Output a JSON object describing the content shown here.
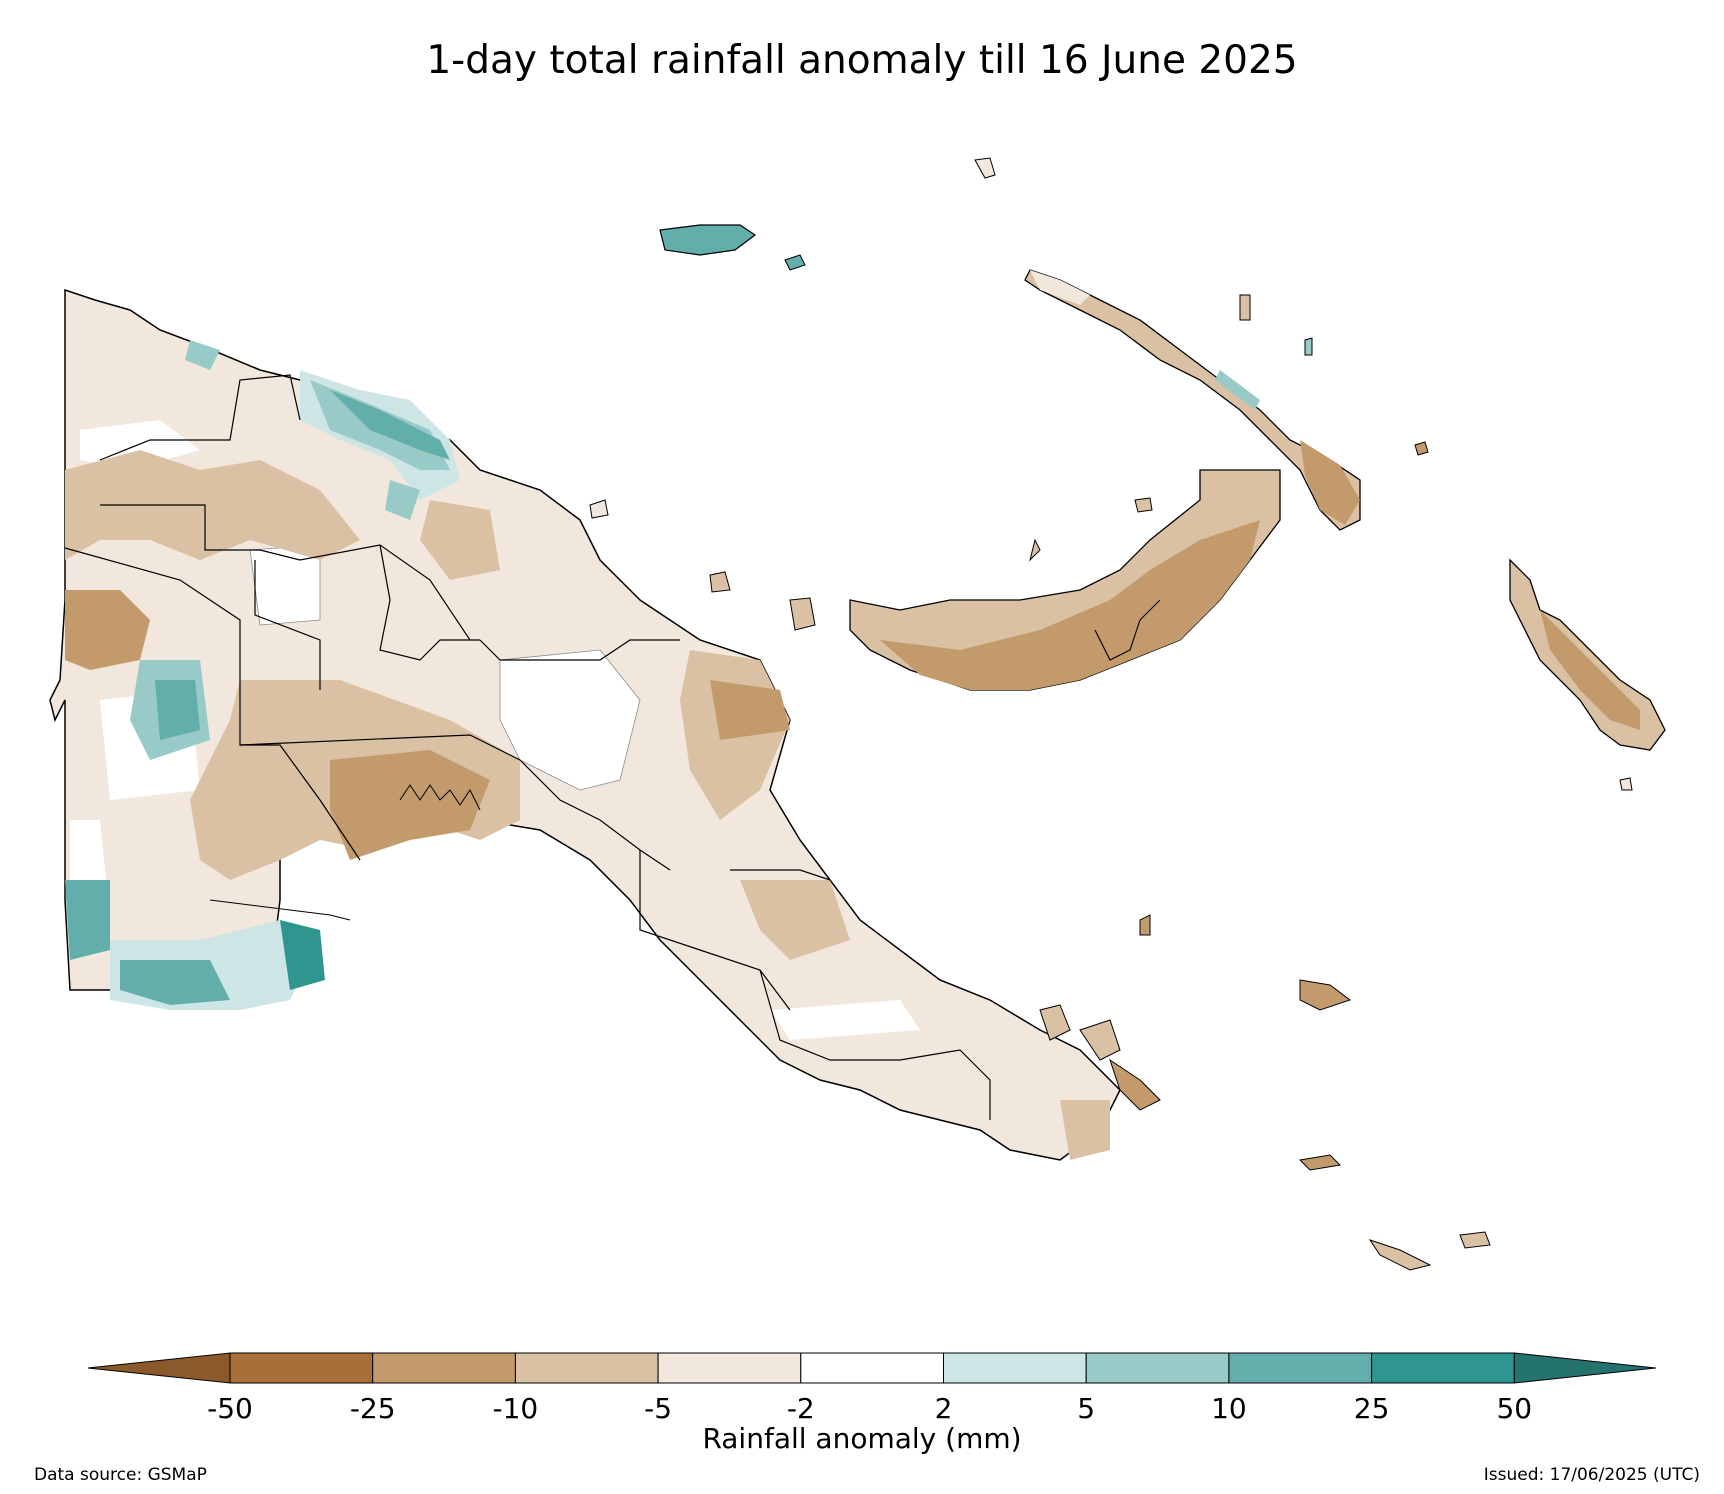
{
  "title": "1-day total rainfall anomaly till 16 June 2025",
  "colorbar": {
    "label": "Rainfall anomaly (mm)",
    "ticks": [
      "-50",
      "-25",
      "-10",
      "-5",
      "-2",
      "2",
      "5",
      "10",
      "25",
      "50"
    ],
    "colors": {
      "extend_low": "#8b5a2b",
      "lt_m50": "#a87038",
      "m50_m25": "#c39a6b",
      "m25_m10": "#dbc1a4",
      "m10_m5": "#f1e7dd",
      "m2_2": "#ffffff",
      "p2_p5": "#cde6e5",
      "p5_p10": "#98cac8",
      "p10_p25": "#62aeab",
      "p25_p50": "#2e968f",
      "extend_high": "#24736e"
    }
  },
  "footer": {
    "source": "Data source: GSMaP",
    "issued": "Issued: 17/06/2025 (UTC)"
  }
}
